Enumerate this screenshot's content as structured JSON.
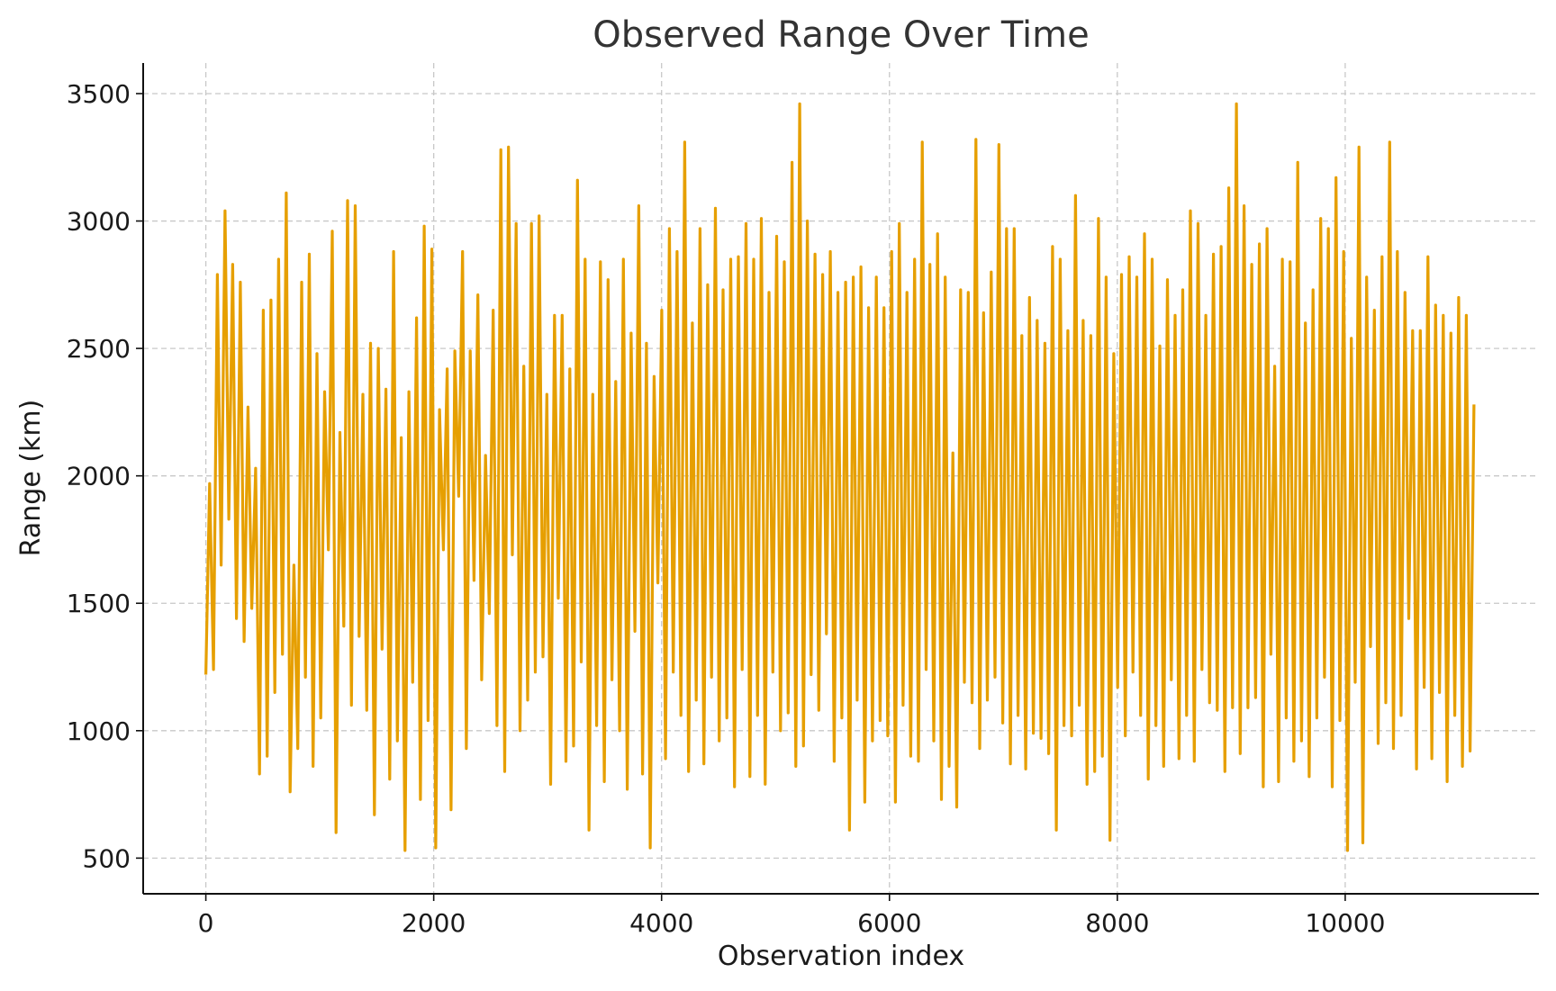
{
  "chart_data": {
    "type": "line",
    "title": "Observed Range Over Time",
    "xlabel": "Observation index",
    "ylabel": "Range (km)",
    "xlim": [
      -550,
      11700
    ],
    "ylim": [
      360,
      3620
    ],
    "xticks": [
      0,
      2000,
      4000,
      6000,
      8000,
      10000
    ],
    "xtick_labels": [
      "0",
      "2000",
      "4000",
      "6000",
      "8000",
      "10000"
    ],
    "yticks": [
      500,
      1000,
      1500,
      2000,
      2500,
      3000,
      3500
    ],
    "ytick_labels": [
      "500",
      "1000",
      "1500",
      "2000",
      "2500",
      "3000",
      "3500"
    ],
    "grid": true,
    "x_range": [
      0,
      11130
    ],
    "series": [
      {
        "color": "#E69F00",
        "y": [
          1220,
          1970,
          1240,
          2790,
          1650,
          3040,
          1830,
          2830,
          1440,
          2760,
          1350,
          2270,
          1480,
          2030,
          830,
          2650,
          900,
          2690,
          1150,
          2850,
          1300,
          3110,
          760,
          1650,
          930,
          2760,
          1210,
          2870,
          860,
          2480,
          1050,
          2330,
          1710,
          2960,
          600,
          2170,
          1410,
          3080,
          1100,
          3060,
          1370,
          2320,
          1080,
          2520,
          670,
          2500,
          1320,
          2340,
          810,
          2880,
          960,
          2150,
          530,
          2330,
          1190,
          2620,
          730,
          2980,
          1040,
          2890,
          540,
          2260,
          1710,
          2420,
          690,
          2490,
          1920,
          2880,
          930,
          2490,
          1590,
          2710,
          1200,
          2080,
          1460,
          2650,
          1020,
          3280,
          840,
          3290,
          1690,
          2990,
          1000,
          2430,
          1120,
          2990,
          1230,
          3020,
          1290,
          2320,
          790,
          2630,
          1520,
          2630,
          880,
          2420,
          940,
          3160,
          1270,
          2850,
          610,
          2320,
          1020,
          2840,
          800,
          2770,
          1200,
          2370,
          1000,
          2850,
          770,
          2560,
          1390,
          3060,
          830,
          2520,
          540,
          2390,
          1580,
          2650,
          890,
          2970,
          1230,
          2880,
          1060,
          3310,
          840,
          2600,
          1120,
          2970,
          870,
          2750,
          1210,
          3050,
          960,
          2730,
          1050,
          2850,
          780,
          2860,
          1240,
          2990,
          820,
          2850,
          1060,
          3010,
          790,
          2720,
          1230,
          2940,
          1000,
          2840,
          1070,
          3230,
          860,
          3460,
          940,
          3000,
          1220,
          2870,
          1080,
          2790,
          1380,
          2880,
          880,
          2720,
          1050,
          2760,
          610,
          2780,
          1120,
          2820,
          720,
          2660,
          960,
          2780,
          1040,
          2660,
          980,
          2880,
          720,
          2990,
          1100,
          2720,
          900,
          2850,
          880,
          3310,
          1240,
          2830,
          960,
          2950,
          730,
          2780,
          860,
          2090,
          700,
          2730,
          1190,
          2720,
          1110,
          3320,
          930,
          2640,
          1120,
          2800,
          1210,
          3300,
          1030,
          2970,
          870,
          2970,
          1060,
          2550,
          850,
          2700,
          990,
          2610,
          970,
          2520,
          910,
          2900,
          610,
          2850,
          1020,
          2570,
          980,
          3100,
          1100,
          2610,
          790,
          2550,
          840,
          3010,
          900,
          2780,
          570,
          2480,
          1170,
          2790,
          980,
          2860,
          1230,
          2780,
          1060,
          2950,
          810,
          2850,
          1020,
          2510,
          860,
          2770,
          1200,
          2630,
          890,
          2730,
          1060,
          3040,
          880,
          2990,
          1240,
          2630,
          1110,
          2870,
          1080,
          2900,
          840,
          3130,
          1090,
          3460,
          910,
          3060,
          1090,
          2830,
          1130,
          2910,
          780,
          2970,
          1300,
          2430,
          800,
          2850,
          1050,
          2840,
          880,
          3230,
          960,
          2600,
          820,
          2730,
          1050,
          3010,
          1210,
          2970,
          780,
          3170,
          1040,
          2880,
          530,
          2540,
          1190,
          3290,
          560,
          2780,
          1330,
          2650,
          950,
          2860,
          1110,
          3310,
          930,
          2880,
          1060,
          2720,
          1440,
          2570,
          850,
          2570,
          1170,
          2860,
          890,
          2670,
          1150,
          2630,
          800,
          2560,
          1060,
          2700,
          860,
          2630,
          920,
          2280
        ]
      }
    ]
  }
}
